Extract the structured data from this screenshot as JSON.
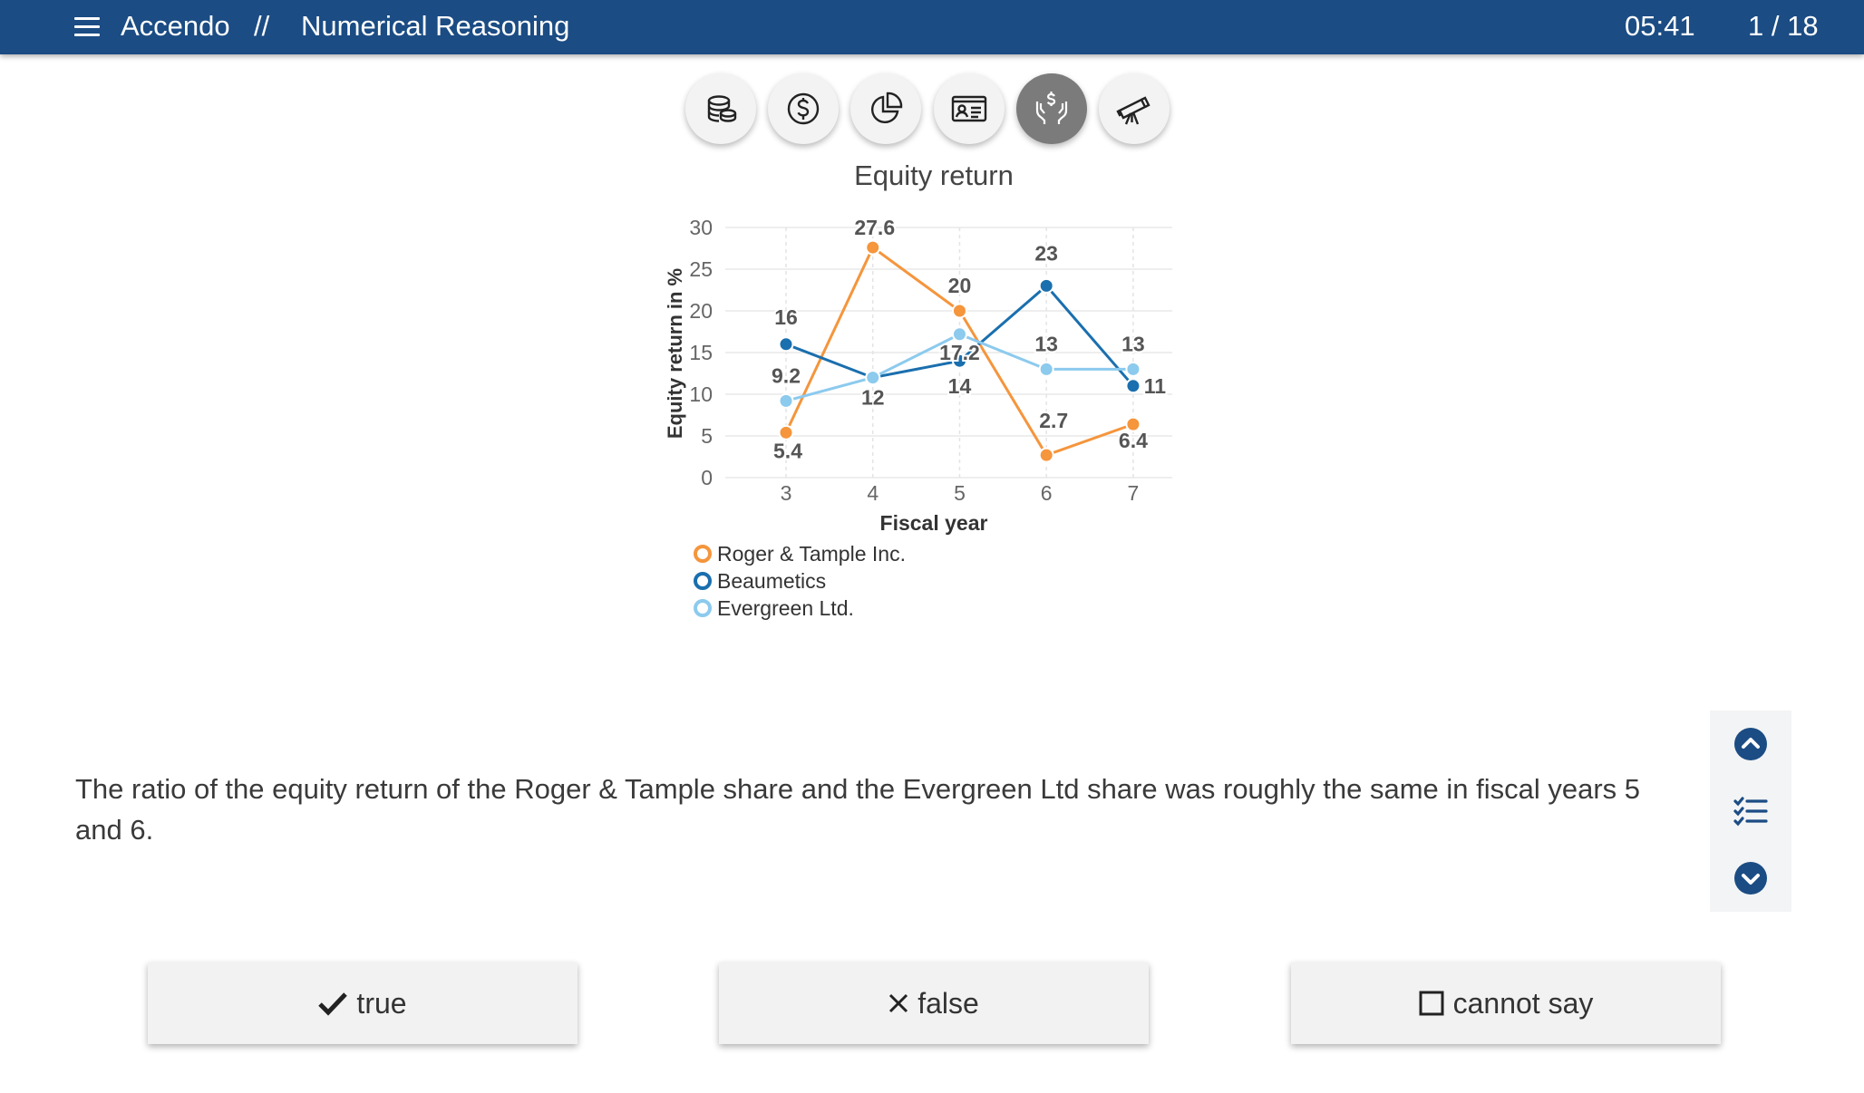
{
  "header": {
    "app_name": "Accendo",
    "separator": "//",
    "section_title": "Numerical Reasoning",
    "timer": "05:41",
    "progress": "1 / 18"
  },
  "category_icons": [
    {
      "name": "coins-icon",
      "active": false
    },
    {
      "name": "dollar-icon",
      "active": false
    },
    {
      "name": "pie-chart-icon",
      "active": false
    },
    {
      "name": "id-card-icon",
      "active": false
    },
    {
      "name": "hands-money-icon",
      "active": true
    },
    {
      "name": "telescope-icon",
      "active": false
    }
  ],
  "chart_data": {
    "type": "line",
    "title": "Equity return",
    "xlabel": "Fiscal year",
    "ylabel": "Equity return in %",
    "x": [
      3,
      4,
      5,
      6,
      7
    ],
    "ylim": [
      0,
      30
    ],
    "yticks": [
      0,
      5,
      10,
      15,
      20,
      25,
      30
    ],
    "grid": true,
    "legend_position": "bottom-left",
    "series": [
      {
        "name": "Roger & Tample Inc.",
        "color": "#f5953c",
        "values": [
          5.4,
          27.6,
          20,
          2.7,
          6.4
        ],
        "labels": [
          "5.4",
          "27.6",
          "20",
          "2.7",
          "6.4"
        ]
      },
      {
        "name": "Beaumetics",
        "color": "#1a6fae",
        "values": [
          16,
          12,
          14,
          23,
          11
        ],
        "labels": [
          "16",
          "12",
          "14",
          "23",
          "11"
        ]
      },
      {
        "name": "Evergreen Ltd.",
        "color": "#8ccaee",
        "values": [
          9.2,
          12,
          17.2,
          13,
          13
        ],
        "labels": [
          "9.2",
          "",
          "17.2",
          "13",
          "13"
        ]
      }
    ]
  },
  "question": {
    "text": "The ratio of the equity return of the Roger & Tample share and the Evergreen Ltd share was roughly the same in fiscal years 5 and 6."
  },
  "answers": {
    "true_label": "true",
    "false_label": "false",
    "cannot_say_label": "cannot say"
  },
  "colors": {
    "header_bg": "#1b4c84",
    "nav_icon": "#1b4c84"
  }
}
